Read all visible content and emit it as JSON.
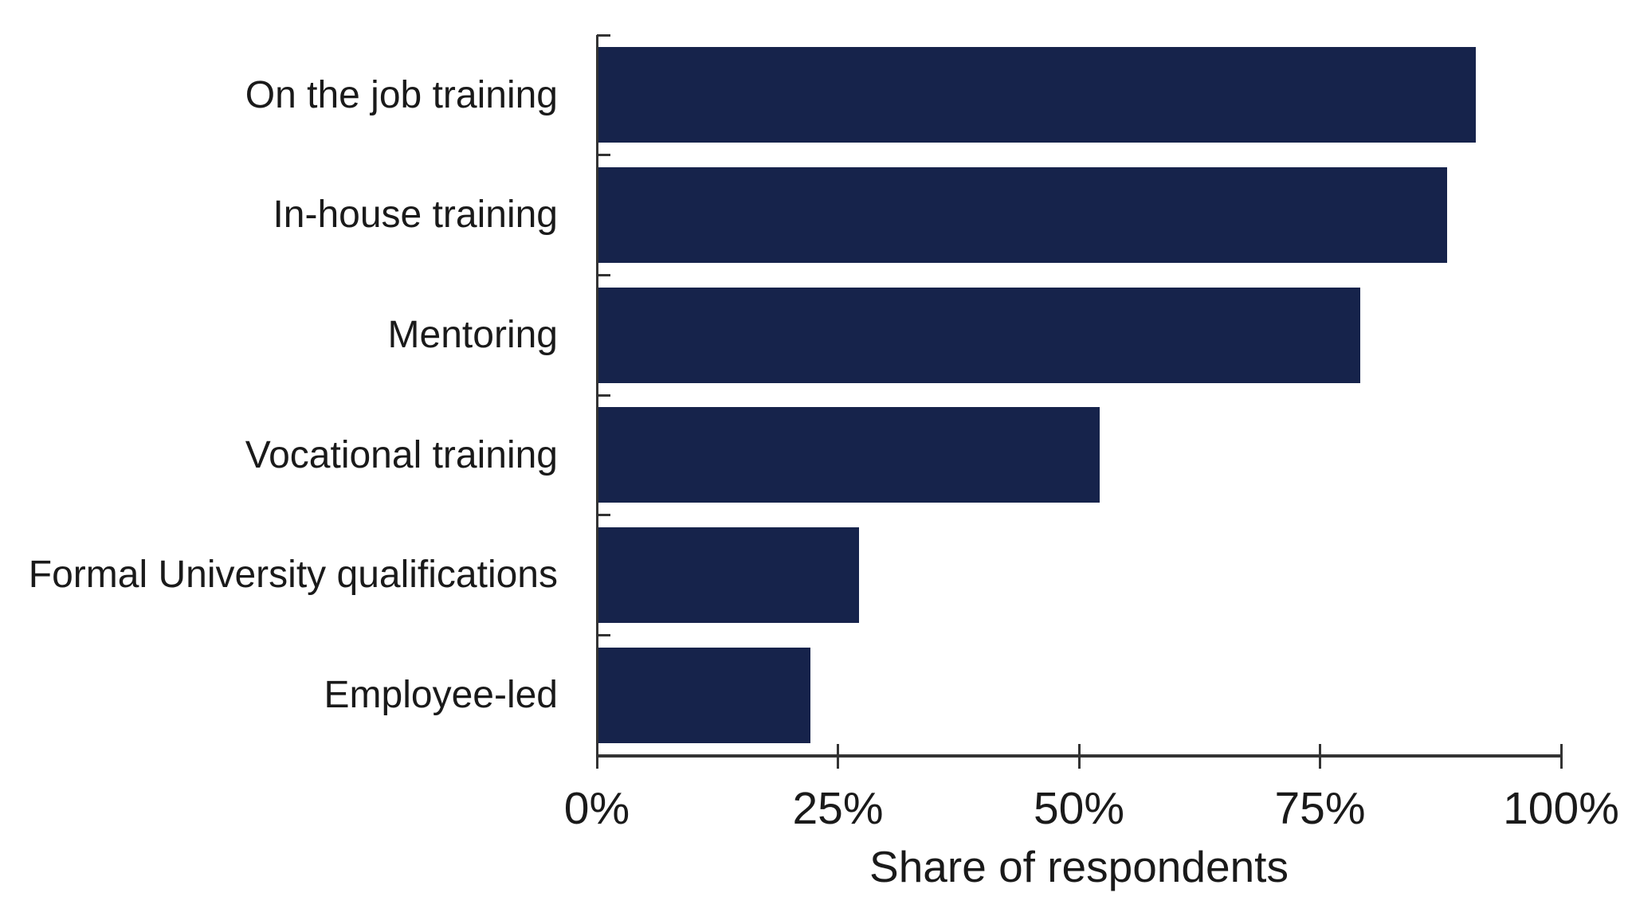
{
  "chart_data": {
    "type": "bar",
    "orientation": "horizontal",
    "title": "",
    "categories": [
      "On the job training",
      "In-house training",
      "Mentoring",
      "Vocational training",
      "Formal University qualifications",
      "Employee-led"
    ],
    "values": [
      91,
      88,
      79,
      52,
      27,
      22
    ],
    "unit": "%",
    "xlabel": "Share of respondents",
    "ylabel": "",
    "xlim": [
      0,
      100
    ],
    "x_tick_labels": [
      "0%",
      "25%",
      "50%",
      "75%",
      "100%"
    ],
    "x_tick_values": [
      0,
      25,
      50,
      75,
      100
    ],
    "grid": false,
    "legend": false,
    "colors": {
      "bar": "#16234B",
      "axis": "#333333",
      "text": "#1a1a1a",
      "background": "#ffffff"
    }
  }
}
